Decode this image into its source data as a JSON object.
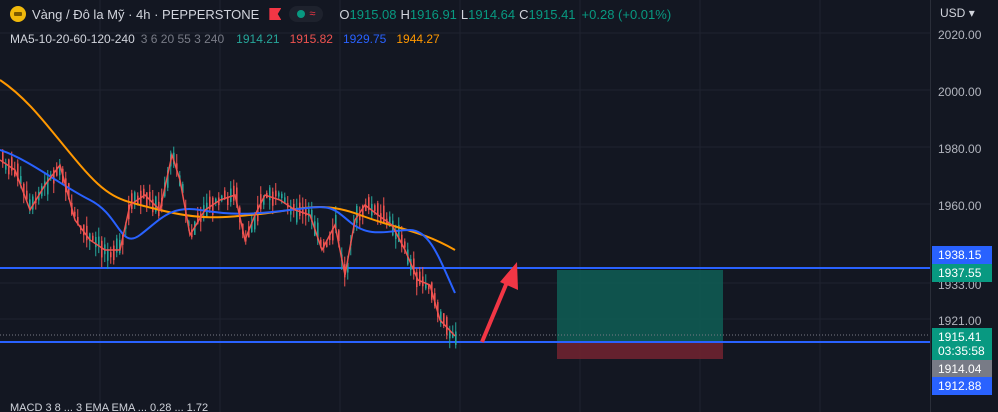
{
  "symbol": {
    "name": "Vàng / Đô la Mỹ · 4h · PEPPERSTONE",
    "ohlc": {
      "o_key": "O",
      "o": "1915.08",
      "h_key": "H",
      "h": "1916.91",
      "l_key": "L",
      "l": "1914.64",
      "c_key": "C",
      "c": "1915.41",
      "change": "+0.28 (+0.01%)"
    }
  },
  "ma": {
    "label": "MA5-10-20-60-120-240",
    "params": "3 6 20 55 3 240",
    "values": [
      {
        "v": "1914.21",
        "color": "#26a69a"
      },
      {
        "v": "1915.82",
        "color": "#ef5350"
      },
      {
        "v": "1929.75",
        "color": "#2962ff"
      },
      {
        "v": "1944.27",
        "color": "#ff9800"
      }
    ]
  },
  "price_scale": {
    "currency": "USD",
    "ticks": [
      "2020.00",
      "2000.00",
      "1980.00",
      "1960.00",
      "1933.00",
      "1921.00"
    ]
  },
  "price_tags": [
    {
      "label": "1938.15",
      "color": "#2962ff"
    },
    {
      "label": "1937.55",
      "color": "#089981"
    },
    {
      "label": "1915.41",
      "sub": "03:35:58",
      "color": "#089981"
    },
    {
      "label": "1914.04",
      "color": "#787b86"
    },
    {
      "label": "1912.88",
      "color": "#2962ff"
    }
  ],
  "bottom_legend": "MACD 3 8 ... 3 EMA EMA ... 0.28 ... 1.72",
  "colors": {
    "up": "#26a69a",
    "down": "#ef5350",
    "ma20": "#2962ff",
    "ma60": "#ff9800",
    "hline": "#2962ff",
    "tp": "#089981",
    "sl": "#f23645"
  }
}
